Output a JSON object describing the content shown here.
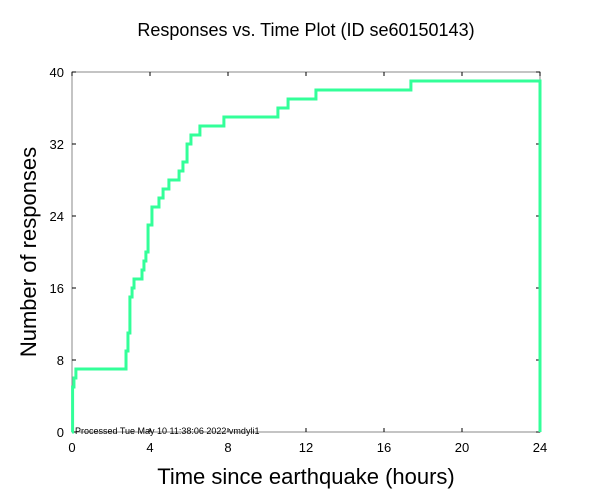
{
  "chart_data": {
    "type": "line",
    "title": "Responses vs. Time Plot (ID se60150143)",
    "xlabel": "Time since earthquake (hours)",
    "ylabel": "Number of responses",
    "xlim": [
      0,
      24
    ],
    "ylim": [
      0,
      40
    ],
    "xticks": [
      0,
      4,
      8,
      12,
      16,
      20,
      24
    ],
    "yticks": [
      0,
      8,
      16,
      24,
      32,
      40
    ],
    "grid": false,
    "line_color": "#33ff99",
    "step_times": [
      0,
      0.03,
      0.1,
      0.2,
      2.77,
      2.87,
      2.97,
      3.08,
      3.18,
      3.59,
      3.69,
      3.79,
      3.9,
      4.1,
      4.46,
      4.67,
      4.97,
      5.49,
      5.69,
      5.9,
      6.1,
      6.56,
      7.79,
      10.56,
      11.08,
      12.51,
      17.38,
      24
    ],
    "step_counts": [
      0,
      5,
      6,
      7,
      9,
      11,
      15,
      16,
      17,
      18,
      19,
      20,
      23,
      25,
      26,
      27,
      28,
      29,
      30,
      32,
      33,
      34,
      35,
      36,
      37,
      38,
      39,
      0
    ],
    "annotation": "Processed Tue May 10 11:38:06 2022 vmdyli1"
  }
}
